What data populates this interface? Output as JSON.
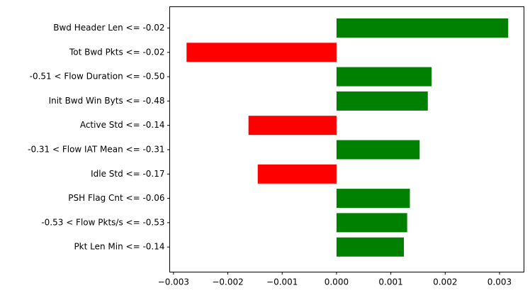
{
  "chart_data": {
    "type": "bar",
    "orientation": "horizontal",
    "categories": [
      "Bwd Header Len <= -0.02",
      "Tot Bwd Pkts <= -0.02",
      "-0.51 < Flow Duration <= -0.50",
      "Init Bwd Win Byts <= -0.48",
      "Active Std <= -0.14",
      "-0.31 < Flow IAT Mean <= -0.31",
      "Idle Std <= -0.17",
      "PSH Flag Cnt <= -0.06",
      "-0.53 < Flow Pkts/s <= -0.53",
      "Pkt Len Min <= -0.14"
    ],
    "values": [
      0.00316,
      -0.00276,
      0.00175,
      0.00168,
      -0.00162,
      0.00153,
      -0.00145,
      0.00135,
      0.0013,
      0.00124
    ],
    "xlim": [
      -0.00307,
      0.00345
    ],
    "xticks": [
      -0.003,
      -0.002,
      -0.001,
      0.0,
      0.001,
      0.002,
      0.003
    ],
    "xtick_labels": [
      "−0.003",
      "−0.002",
      "−0.001",
      "0.000",
      "0.001",
      "0.002",
      "0.003"
    ],
    "colors": {
      "positive": "#008000",
      "negative": "#ff0000"
    },
    "grid": false,
    "title": "",
    "xlabel": "",
    "ylabel": ""
  }
}
